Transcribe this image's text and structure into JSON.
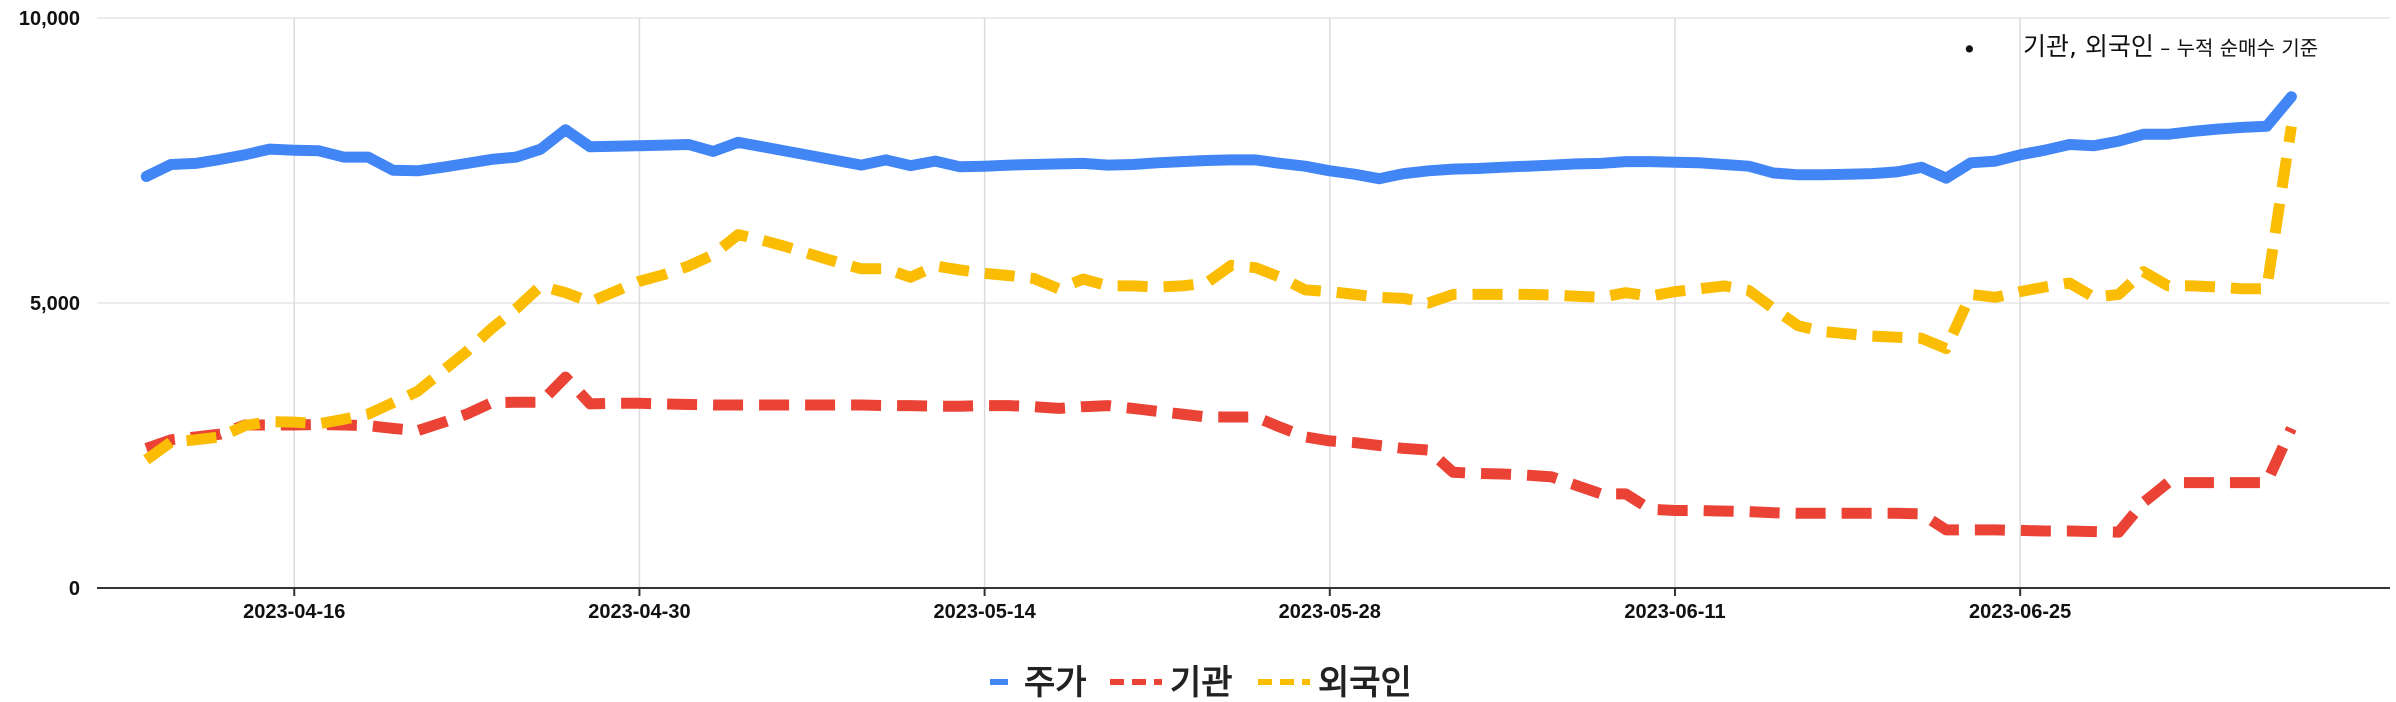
{
  "chart_data": {
    "type": "line",
    "title": "",
    "xlabel": "",
    "ylabel": "",
    "ylim": [
      0,
      10000
    ],
    "yticks": [
      {
        "value": 0,
        "label": "0"
      },
      {
        "value": 5000,
        "label": "5,000"
      },
      {
        "value": 10000,
        "label": "10,000"
      }
    ],
    "xlim": [
      "2023-04-08",
      "2023-07-10"
    ],
    "xticks": [
      "2023-04-16",
      "2023-04-30",
      "2023-05-14",
      "2023-05-28",
      "2023-06-11",
      "2023-06-25"
    ],
    "grid": true,
    "legend_position": "bottom",
    "annotation": {
      "bullet": "•",
      "main": "기관, 외국인",
      "sub": " – 누적 순매수 기준"
    },
    "series": [
      {
        "name": "주가",
        "color": "#4285f4",
        "style": "solid",
        "points": [
          [
            "2023-04-10",
            7220
          ],
          [
            "2023-04-11",
            7430
          ],
          [
            "2023-04-12",
            7450
          ],
          [
            "2023-04-13",
            7520
          ],
          [
            "2023-04-14",
            7600
          ],
          [
            "2023-04-15",
            7700
          ],
          [
            "2023-04-16",
            7680
          ],
          [
            "2023-04-17",
            7670
          ],
          [
            "2023-04-18",
            7560
          ],
          [
            "2023-04-19",
            7560
          ],
          [
            "2023-04-20",
            7330
          ],
          [
            "2023-04-21",
            7320
          ],
          [
            "2023-04-22",
            7380
          ],
          [
            "2023-04-23",
            7450
          ],
          [
            "2023-04-24",
            7520
          ],
          [
            "2023-04-25",
            7560
          ],
          [
            "2023-04-26",
            7700
          ],
          [
            "2023-04-27",
            8040
          ],
          [
            "2023-04-28",
            7740
          ],
          [
            "2023-04-29",
            7750
          ],
          [
            "2023-04-30",
            7760
          ],
          [
            "2023-05-01",
            7770
          ],
          [
            "2023-05-02",
            7780
          ],
          [
            "2023-05-03",
            7660
          ],
          [
            "2023-05-04",
            7820
          ],
          [
            "2023-05-05",
            7740
          ],
          [
            "2023-05-06",
            7660
          ],
          [
            "2023-05-07",
            7580
          ],
          [
            "2023-05-08",
            7500
          ],
          [
            "2023-05-09",
            7420
          ],
          [
            "2023-05-10",
            7510
          ],
          [
            "2023-05-11",
            7410
          ],
          [
            "2023-05-12",
            7490
          ],
          [
            "2023-05-13",
            7390
          ],
          [
            "2023-05-14",
            7400
          ],
          [
            "2023-05-15",
            7420
          ],
          [
            "2023-05-16",
            7430
          ],
          [
            "2023-05-17",
            7440
          ],
          [
            "2023-05-18",
            7450
          ],
          [
            "2023-05-19",
            7420
          ],
          [
            "2023-05-20",
            7430
          ],
          [
            "2023-05-21",
            7460
          ],
          [
            "2023-05-22",
            7480
          ],
          [
            "2023-05-23",
            7500
          ],
          [
            "2023-05-24",
            7510
          ],
          [
            "2023-05-25",
            7510
          ],
          [
            "2023-05-26",
            7450
          ],
          [
            "2023-05-27",
            7400
          ],
          [
            "2023-05-28",
            7320
          ],
          [
            "2023-05-29",
            7260
          ],
          [
            "2023-05-30",
            7180
          ],
          [
            "2023-05-31",
            7270
          ],
          [
            "2023-06-01",
            7320
          ],
          [
            "2023-06-02",
            7350
          ],
          [
            "2023-06-03",
            7360
          ],
          [
            "2023-06-04",
            7380
          ],
          [
            "2023-06-05",
            7400
          ],
          [
            "2023-06-06",
            7420
          ],
          [
            "2023-06-07",
            7440
          ],
          [
            "2023-06-08",
            7450
          ],
          [
            "2023-06-09",
            7480
          ],
          [
            "2023-06-10",
            7480
          ],
          [
            "2023-06-11",
            7470
          ],
          [
            "2023-06-12",
            7460
          ],
          [
            "2023-06-13",
            7430
          ],
          [
            "2023-06-14",
            7400
          ],
          [
            "2023-06-15",
            7280
          ],
          [
            "2023-06-16",
            7250
          ],
          [
            "2023-06-17",
            7250
          ],
          [
            "2023-06-18",
            7260
          ],
          [
            "2023-06-19",
            7270
          ],
          [
            "2023-06-20",
            7300
          ],
          [
            "2023-06-21",
            7380
          ],
          [
            "2023-06-22",
            7190
          ],
          [
            "2023-06-23",
            7460
          ],
          [
            "2023-06-24",
            7490
          ],
          [
            "2023-06-25",
            7600
          ],
          [
            "2023-06-26",
            7680
          ],
          [
            "2023-06-27",
            7780
          ],
          [
            "2023-06-28",
            7760
          ],
          [
            "2023-06-29",
            7840
          ],
          [
            "2023-06-30",
            7960
          ],
          [
            "2023-07-01",
            7960
          ],
          [
            "2023-07-02",
            8010
          ],
          [
            "2023-07-03",
            8050
          ],
          [
            "2023-07-04",
            8080
          ],
          [
            "2023-07-05",
            8100
          ],
          [
            "2023-07-06",
            8620
          ]
        ]
      },
      {
        "name": "기관",
        "color": "#ea4335",
        "style": "dashed",
        "points": [
          [
            "2023-04-10",
            2450
          ],
          [
            "2023-04-11",
            2600
          ],
          [
            "2023-04-12",
            2650
          ],
          [
            "2023-04-13",
            2700
          ],
          [
            "2023-04-14",
            2860
          ],
          [
            "2023-04-15",
            2860
          ],
          [
            "2023-04-16",
            2860
          ],
          [
            "2023-04-17",
            2870
          ],
          [
            "2023-04-18",
            2860
          ],
          [
            "2023-04-19",
            2850
          ],
          [
            "2023-04-20",
            2800
          ],
          [
            "2023-04-21",
            2760
          ],
          [
            "2023-04-22",
            2900
          ],
          [
            "2023-04-23",
            3050
          ],
          [
            "2023-04-24",
            3250
          ],
          [
            "2023-04-25",
            3260
          ],
          [
            "2023-04-26",
            3260
          ],
          [
            "2023-04-27",
            3700
          ],
          [
            "2023-04-28",
            3230
          ],
          [
            "2023-04-29",
            3240
          ],
          [
            "2023-04-30",
            3240
          ],
          [
            "2023-05-01",
            3230
          ],
          [
            "2023-05-02",
            3220
          ],
          [
            "2023-05-03",
            3210
          ],
          [
            "2023-05-04",
            3210
          ],
          [
            "2023-05-05",
            3210
          ],
          [
            "2023-05-06",
            3210
          ],
          [
            "2023-05-07",
            3210
          ],
          [
            "2023-05-08",
            3210
          ],
          [
            "2023-05-09",
            3210
          ],
          [
            "2023-05-10",
            3200
          ],
          [
            "2023-05-11",
            3200
          ],
          [
            "2023-05-12",
            3190
          ],
          [
            "2023-05-13",
            3190
          ],
          [
            "2023-05-14",
            3200
          ],
          [
            "2023-05-15",
            3200
          ],
          [
            "2023-05-16",
            3180
          ],
          [
            "2023-05-17",
            3150
          ],
          [
            "2023-05-18",
            3180
          ],
          [
            "2023-05-19",
            3200
          ],
          [
            "2023-05-20",
            3150
          ],
          [
            "2023-05-21",
            3100
          ],
          [
            "2023-05-22",
            3050
          ],
          [
            "2023-05-23",
            3000
          ],
          [
            "2023-05-24",
            3000
          ],
          [
            "2023-05-25",
            3000
          ],
          [
            "2023-05-26",
            2820
          ],
          [
            "2023-05-27",
            2650
          ],
          [
            "2023-05-28",
            2580
          ],
          [
            "2023-05-29",
            2550
          ],
          [
            "2023-05-30",
            2500
          ],
          [
            "2023-05-31",
            2450
          ],
          [
            "2023-06-01",
            2420
          ],
          [
            "2023-06-02",
            2030
          ],
          [
            "2023-06-03",
            2010
          ],
          [
            "2023-06-04",
            2000
          ],
          [
            "2023-06-05",
            1980
          ],
          [
            "2023-06-06",
            1950
          ],
          [
            "2023-06-07",
            1800
          ],
          [
            "2023-06-08",
            1650
          ],
          [
            "2023-06-09",
            1650
          ],
          [
            "2023-06-10",
            1380
          ],
          [
            "2023-06-11",
            1360
          ],
          [
            "2023-06-12",
            1360
          ],
          [
            "2023-06-13",
            1350
          ],
          [
            "2023-06-14",
            1340
          ],
          [
            "2023-06-15",
            1320
          ],
          [
            "2023-06-16",
            1310
          ],
          [
            "2023-06-17",
            1310
          ],
          [
            "2023-06-18",
            1310
          ],
          [
            "2023-06-19",
            1310
          ],
          [
            "2023-06-20",
            1310
          ],
          [
            "2023-06-21",
            1300
          ],
          [
            "2023-06-22",
            1020
          ],
          [
            "2023-06-23",
            1020
          ],
          [
            "2023-06-24",
            1020
          ],
          [
            "2023-06-25",
            1010
          ],
          [
            "2023-06-26",
            1000
          ],
          [
            "2023-06-27",
            1000
          ],
          [
            "2023-06-28",
            990
          ],
          [
            "2023-06-29",
            980
          ],
          [
            "2023-06-30",
            1500
          ],
          [
            "2023-07-01",
            1850
          ],
          [
            "2023-07-02",
            1850
          ],
          [
            "2023-07-03",
            1850
          ],
          [
            "2023-07-04",
            1850
          ],
          [
            "2023-07-05",
            1850
          ],
          [
            "2023-07-06",
            2800
          ]
        ]
      },
      {
        "name": "외국인",
        "color": "#fbbc04",
        "style": "dashed",
        "points": [
          [
            "2023-04-10",
            2250
          ],
          [
            "2023-04-11",
            2560
          ],
          [
            "2023-04-12",
            2600
          ],
          [
            "2023-04-13",
            2650
          ],
          [
            "2023-04-14",
            2850
          ],
          [
            "2023-04-15",
            2920
          ],
          [
            "2023-04-16",
            2910
          ],
          [
            "2023-04-17",
            2880
          ],
          [
            "2023-04-18",
            2960
          ],
          [
            "2023-04-19",
            3050
          ],
          [
            "2023-04-20",
            3250
          ],
          [
            "2023-04-21",
            3450
          ],
          [
            "2023-04-22",
            3800
          ],
          [
            "2023-04-23",
            4150
          ],
          [
            "2023-04-24",
            4550
          ],
          [
            "2023-04-25",
            4900
          ],
          [
            "2023-04-26",
            5300
          ],
          [
            "2023-04-27",
            5180
          ],
          [
            "2023-04-28",
            5020
          ],
          [
            "2023-04-29",
            5200
          ],
          [
            "2023-04-30",
            5380
          ],
          [
            "2023-05-01",
            5500
          ],
          [
            "2023-05-02",
            5650
          ],
          [
            "2023-05-03",
            5850
          ],
          [
            "2023-05-04",
            6200
          ],
          [
            "2023-05-05",
            6100
          ],
          [
            "2023-05-06",
            5980
          ],
          [
            "2023-05-07",
            5850
          ],
          [
            "2023-05-08",
            5720
          ],
          [
            "2023-05-09",
            5600
          ],
          [
            "2023-05-10",
            5600
          ],
          [
            "2023-05-11",
            5450
          ],
          [
            "2023-05-12",
            5650
          ],
          [
            "2023-05-13",
            5580
          ],
          [
            "2023-05-14",
            5520
          ],
          [
            "2023-05-15",
            5480
          ],
          [
            "2023-05-16",
            5430
          ],
          [
            "2023-05-17",
            5250
          ],
          [
            "2023-05-18",
            5420
          ],
          [
            "2023-05-19",
            5300
          ],
          [
            "2023-05-20",
            5300
          ],
          [
            "2023-05-21",
            5280
          ],
          [
            "2023-05-22",
            5300
          ],
          [
            "2023-05-23",
            5350
          ],
          [
            "2023-05-24",
            5660
          ],
          [
            "2023-05-25",
            5620
          ],
          [
            "2023-05-26",
            5450
          ],
          [
            "2023-05-27",
            5230
          ],
          [
            "2023-05-28",
            5200
          ],
          [
            "2023-05-29",
            5150
          ],
          [
            "2023-05-30",
            5100
          ],
          [
            "2023-05-31",
            5080
          ],
          [
            "2023-06-01",
            5000
          ],
          [
            "2023-06-02",
            5150
          ],
          [
            "2023-06-03",
            5150
          ],
          [
            "2023-06-04",
            5150
          ],
          [
            "2023-06-05",
            5150
          ],
          [
            "2023-06-06",
            5140
          ],
          [
            "2023-06-07",
            5120
          ],
          [
            "2023-06-08",
            5100
          ],
          [
            "2023-06-09",
            5180
          ],
          [
            "2023-06-10",
            5120
          ],
          [
            "2023-06-11",
            5200
          ],
          [
            "2023-06-12",
            5250
          ],
          [
            "2023-06-13",
            5300
          ],
          [
            "2023-06-14",
            5220
          ],
          [
            "2023-06-15",
            4900
          ],
          [
            "2023-06-16",
            4600
          ],
          [
            "2023-06-17",
            4500
          ],
          [
            "2023-06-18",
            4460
          ],
          [
            "2023-06-19",
            4420
          ],
          [
            "2023-06-20",
            4400
          ],
          [
            "2023-06-21",
            4380
          ],
          [
            "2023-06-22",
            4200
          ],
          [
            "2023-06-23",
            5150
          ],
          [
            "2023-06-24",
            5100
          ],
          [
            "2023-06-25",
            5200
          ],
          [
            "2023-06-26",
            5280
          ],
          [
            "2023-06-27",
            5350
          ],
          [
            "2023-06-28",
            5100
          ],
          [
            "2023-06-29",
            5150
          ],
          [
            "2023-06-30",
            5550
          ],
          [
            "2023-07-01",
            5300
          ],
          [
            "2023-07-02",
            5300
          ],
          [
            "2023-07-03",
            5280
          ],
          [
            "2023-07-04",
            5250
          ],
          [
            "2023-07-05",
            5250
          ],
          [
            "2023-07-06",
            8100
          ]
        ]
      }
    ]
  }
}
